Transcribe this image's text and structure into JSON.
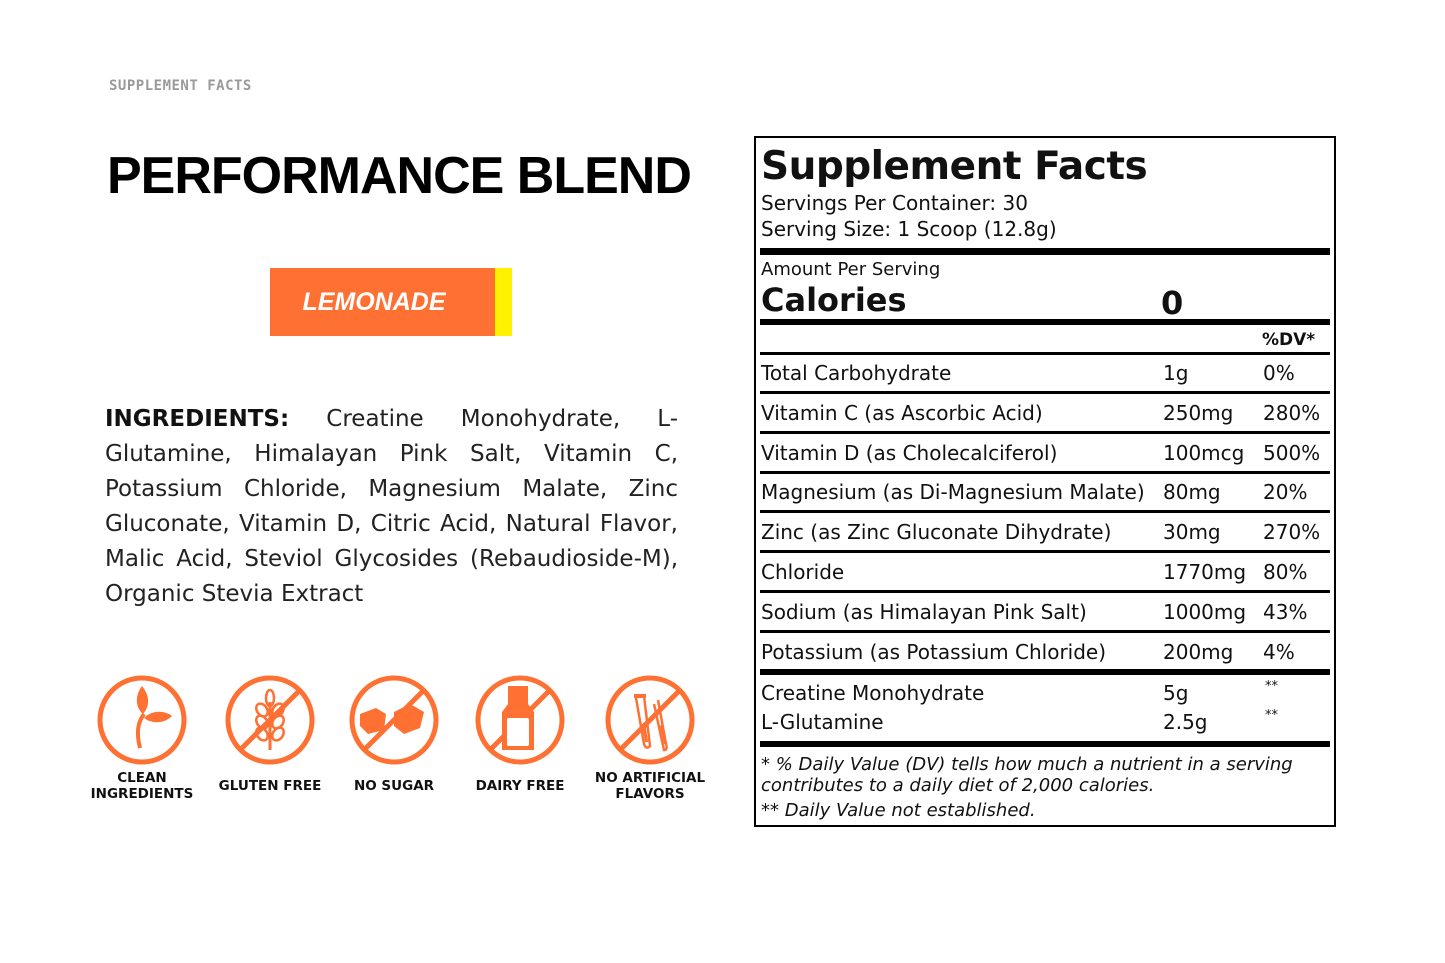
{
  "eyebrow": "SUPPLEMENT FACTS",
  "title": "PERFORMANCE BLEND",
  "flavor": {
    "label": "LEMONADE",
    "color": "#ff7033",
    "accent": "#fff200"
  },
  "ingredients": {
    "heading": "INGREDIENTS:",
    "text": "Creatine Monohydrate, L-Glutamine, Himalayan Pink Salt, Vitamin C, Potassium Chloride, Magnesium Malate, Zinc Gluconate, Vitamin D, Citric Acid, Natural Flavor, Malic Acid, Steviol Glycosides (Rebaudioside-M), Organic Stevia Extract"
  },
  "badges": [
    {
      "icon": "sprout-icon",
      "line1": "CLEAN",
      "line2": "INGREDIENTS"
    },
    {
      "icon": "wheat-crossed-icon",
      "line1": "GLUTEN FREE",
      "line2": ""
    },
    {
      "icon": "sugar-cubes-crossed-icon",
      "line1": "NO SUGAR",
      "line2": ""
    },
    {
      "icon": "milk-bottle-crossed-icon",
      "line1": "DAIRY FREE",
      "line2": ""
    },
    {
      "icon": "test-tubes-crossed-icon",
      "line1": "NO ARTIFICIAL",
      "line2": "FLAVORS"
    }
  ],
  "facts": {
    "title": "Supplement Facts",
    "servings": "Servings Per Container: 30",
    "serving_size": "Serving Size: 1 Scoop (12.8g)",
    "amount_per": "Amount Per Serving",
    "calories_label": "Calories",
    "calories_value": "0",
    "dv_header": "%DV*",
    "rows": [
      {
        "name": "Total Carbohydrate",
        "amount": "1g",
        "dv": "0%"
      },
      {
        "name": "Vitamin C (as Ascorbic Acid)",
        "amount": "250mg",
        "dv": "280%"
      },
      {
        "name": "Vitamin D (as Cholecalciferol)",
        "amount": "100mcg",
        "dv": "500%"
      },
      {
        "name": "Magnesium (as Di-Magnesium Malate)",
        "amount": "80mg",
        "dv": "20%"
      },
      {
        "name": "Zinc (as Zinc Gluconate Dihydrate)",
        "amount": "30mg",
        "dv": "270%"
      },
      {
        "name": "Chloride",
        "amount": "1770mg",
        "dv": "80%"
      },
      {
        "name": "Sodium (as Himalayan Pink Salt)",
        "amount": "1000mg",
        "dv": "43%"
      },
      {
        "name": "Potassium (as Potassium Chloride)",
        "amount": "200mg",
        "dv": "4%"
      }
    ],
    "other": [
      {
        "name": "Creatine Monohydrate",
        "amount": "5g",
        "dv": "**"
      },
      {
        "name": "L-Glutamine",
        "amount": "2.5g",
        "dv": "**"
      }
    ],
    "foot1": "* % Daily Value (DV) tells how much a nutrient in a serving",
    "foot2": "contributes to a daily diet of 2,000 calories.",
    "foot3": "** Daily Value not established."
  }
}
